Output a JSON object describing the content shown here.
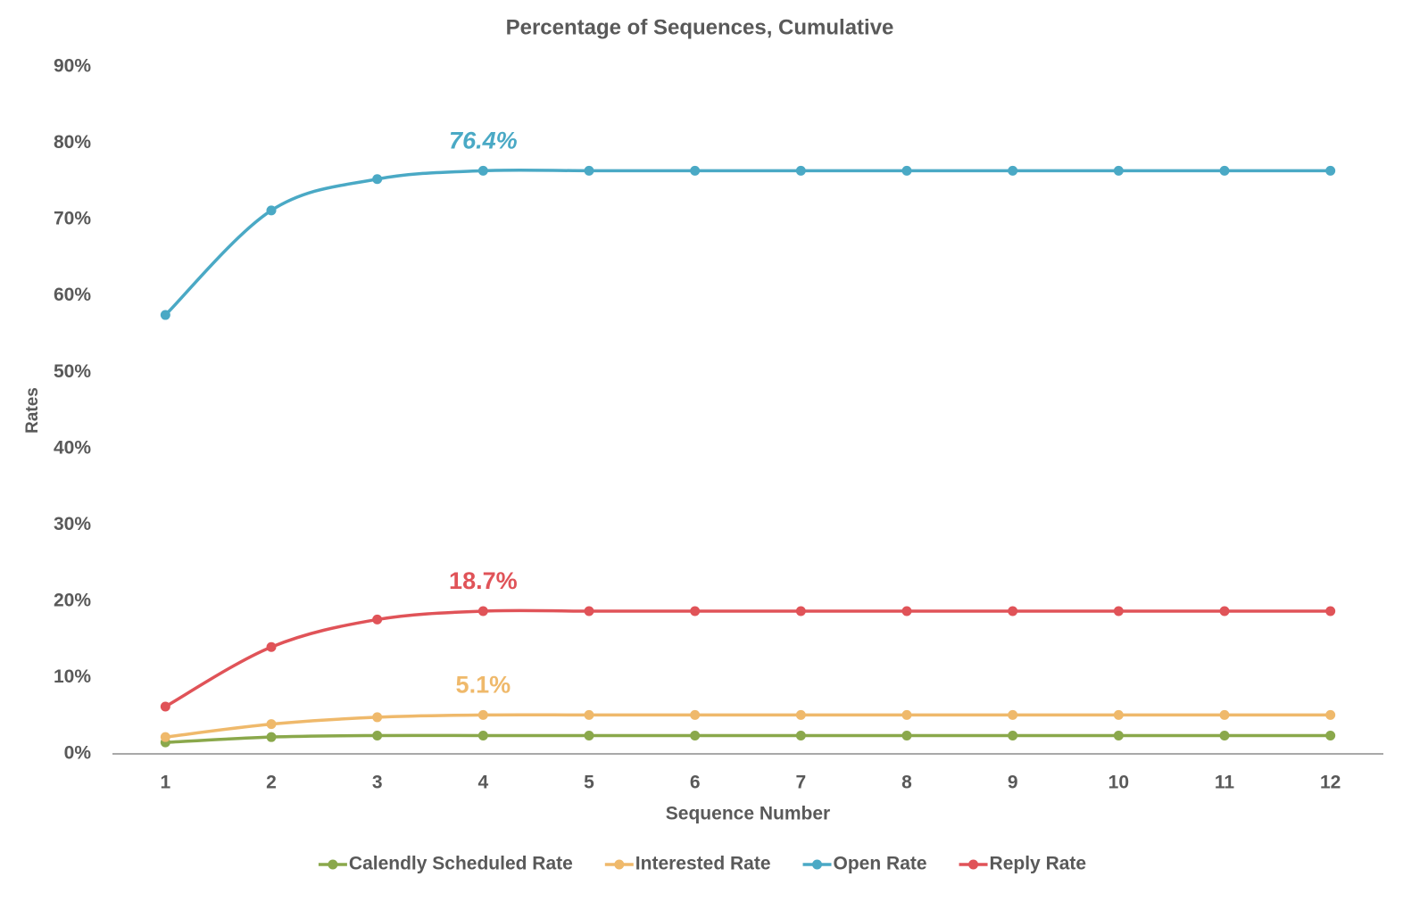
{
  "chart_data": {
    "type": "line",
    "title": "Percentage of Sequences, Cumulative",
    "x_label": "Sequence Number",
    "y_label": "Rates",
    "x": [
      1,
      2,
      3,
      4,
      5,
      6,
      7,
      8,
      9,
      10,
      11,
      12
    ],
    "xlim": [
      0.5,
      12.5
    ],
    "xticks": [
      1,
      2,
      3,
      4,
      5,
      6,
      7,
      8,
      9,
      10,
      11,
      12
    ],
    "ylim": [
      0,
      90
    ],
    "yticks": [
      {
        "value": 0,
        "label": "0%"
      },
      {
        "value": 10,
        "label": "10%"
      },
      {
        "value": 20,
        "label": "20%"
      },
      {
        "value": 30,
        "label": "30%"
      },
      {
        "value": 40,
        "label": "40%"
      },
      {
        "value": 50,
        "label": "50%"
      },
      {
        "value": 60,
        "label": "60%"
      },
      {
        "value": 70,
        "label": "70%"
      },
      {
        "value": 80,
        "label": "80%"
      },
      {
        "value": 90,
        "label": "90%"
      }
    ],
    "grid": false,
    "smooth": true,
    "legend": "bottom",
    "series": [
      {
        "name": "Calendly Scheduled Rate",
        "color": "#8aa84b",
        "values": [
          1.5,
          2.2,
          2.4,
          2.4,
          2.4,
          2.4,
          2.4,
          2.4,
          2.4,
          2.4,
          2.4,
          2.4
        ]
      },
      {
        "name": "Interested Rate",
        "color": "#efb96b",
        "values": [
          2.2,
          3.9,
          4.8,
          5.1,
          5.1,
          5.1,
          5.1,
          5.1,
          5.1,
          5.1,
          5.1,
          5.1
        ],
        "value_labels": [
          null,
          null,
          null,
          "5.1%",
          null,
          null,
          null,
          null,
          null,
          null,
          null,
          null
        ]
      },
      {
        "name": "Open Rate",
        "color": "#4aa9c5",
        "values": [
          57.5,
          71.2,
          75.3,
          76.4,
          76.4,
          76.4,
          76.4,
          76.4,
          76.4,
          76.4,
          76.4,
          76.4
        ],
        "value_labels": [
          null,
          null,
          null,
          "76.4%",
          null,
          null,
          null,
          null,
          null,
          null,
          null,
          null
        ],
        "value_label_italic": true
      },
      {
        "name": "Reply Rate",
        "color": "#e05358",
        "values": [
          6.2,
          14.0,
          17.6,
          18.7,
          18.7,
          18.7,
          18.7,
          18.7,
          18.7,
          18.7,
          18.7,
          18.7
        ],
        "value_labels": [
          null,
          null,
          null,
          "18.7%",
          null,
          null,
          null,
          null,
          null,
          null,
          null,
          null
        ]
      }
    ]
  }
}
